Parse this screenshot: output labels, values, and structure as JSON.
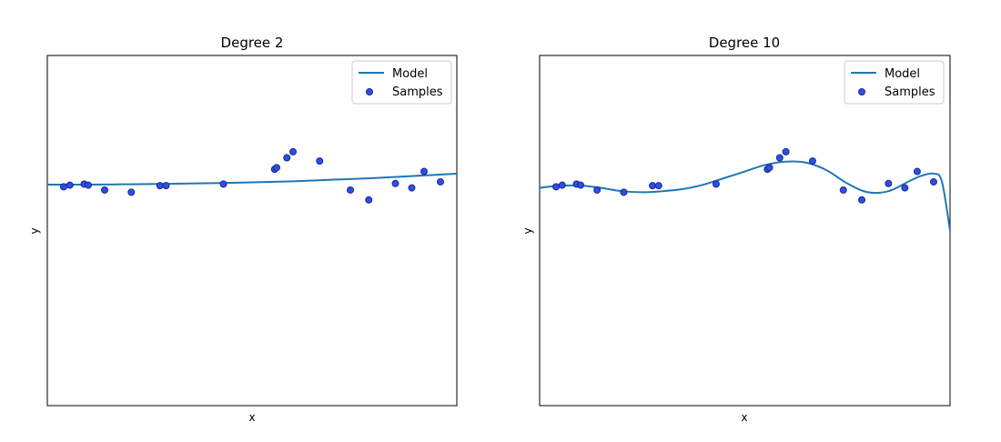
{
  "chart_data": [
    {
      "type": "line",
      "title": "Degree 2",
      "xlabel": "x",
      "ylabel": "y",
      "xticks": [],
      "yticks": [],
      "xlim": [
        0,
        1
      ],
      "ylim": [
        -1.6,
        1.6
      ],
      "grid": false,
      "legend": {
        "position": "top-right",
        "entries": [
          "Model",
          "Samples"
        ]
      },
      "series": [
        {
          "name": "Model",
          "kind": "line",
          "color": "#1f77b4",
          "x": [
            0.0,
            0.1,
            0.2,
            0.3,
            0.4,
            0.5,
            0.6,
            0.7,
            0.8,
            0.9,
            1.0
          ],
          "y": [
            0.42,
            0.42,
            0.423,
            0.427,
            0.433,
            0.44,
            0.45,
            0.465,
            0.48,
            0.5,
            0.52
          ]
        },
        {
          "name": "Samples",
          "kind": "scatter",
          "color": "#2e4ee8",
          "edgecolor": "#1a2b8a",
          "x": [
            0.04,
            0.055,
            0.09,
            0.1,
            0.14,
            0.205,
            0.275,
            0.29,
            0.43,
            0.555,
            0.56,
            0.585,
            0.6,
            0.665,
            0.74,
            0.785,
            0.85,
            0.89,
            0.92,
            0.96
          ],
          "y": [
            0.4,
            0.415,
            0.425,
            0.415,
            0.37,
            0.35,
            0.41,
            0.41,
            0.425,
            0.56,
            0.575,
            0.665,
            0.72,
            0.635,
            0.37,
            0.28,
            0.43,
            0.39,
            0.54,
            0.445
          ]
        }
      ]
    },
    {
      "type": "line",
      "title": "Degree 10",
      "xlabel": "x",
      "ylabel": "y",
      "xticks": [],
      "yticks": [],
      "xlim": [
        0,
        1
      ],
      "ylim": [
        -1.6,
        1.6
      ],
      "grid": false,
      "legend": {
        "position": "top-right",
        "entries": [
          "Model",
          "Samples"
        ]
      },
      "series": [
        {
          "name": "Model",
          "kind": "line",
          "color": "#1f77b4",
          "x": [
            0.0,
            0.05,
            0.1,
            0.15,
            0.2,
            0.25,
            0.3,
            0.35,
            0.4,
            0.45,
            0.5,
            0.55,
            0.6,
            0.65,
            0.7,
            0.75,
            0.8,
            0.85,
            0.9,
            0.93,
            0.96,
            0.98,
            1.0
          ],
          "y": [
            0.39,
            0.41,
            0.41,
            0.39,
            0.36,
            0.35,
            0.36,
            0.38,
            0.42,
            0.48,
            0.54,
            0.6,
            0.63,
            0.62,
            0.55,
            0.43,
            0.35,
            0.36,
            0.45,
            0.5,
            0.52,
            0.45,
            0.0
          ]
        },
        {
          "name": "Samples",
          "kind": "scatter",
          "color": "#2e4ee8",
          "edgecolor": "#1a2b8a",
          "x": [
            0.04,
            0.055,
            0.09,
            0.1,
            0.14,
            0.205,
            0.275,
            0.29,
            0.43,
            0.555,
            0.56,
            0.585,
            0.6,
            0.665,
            0.74,
            0.785,
            0.85,
            0.89,
            0.92,
            0.96
          ],
          "y": [
            0.4,
            0.415,
            0.425,
            0.415,
            0.37,
            0.35,
            0.41,
            0.41,
            0.425,
            0.56,
            0.575,
            0.665,
            0.72,
            0.635,
            0.37,
            0.28,
            0.43,
            0.39,
            0.54,
            0.445
          ]
        }
      ]
    }
  ]
}
